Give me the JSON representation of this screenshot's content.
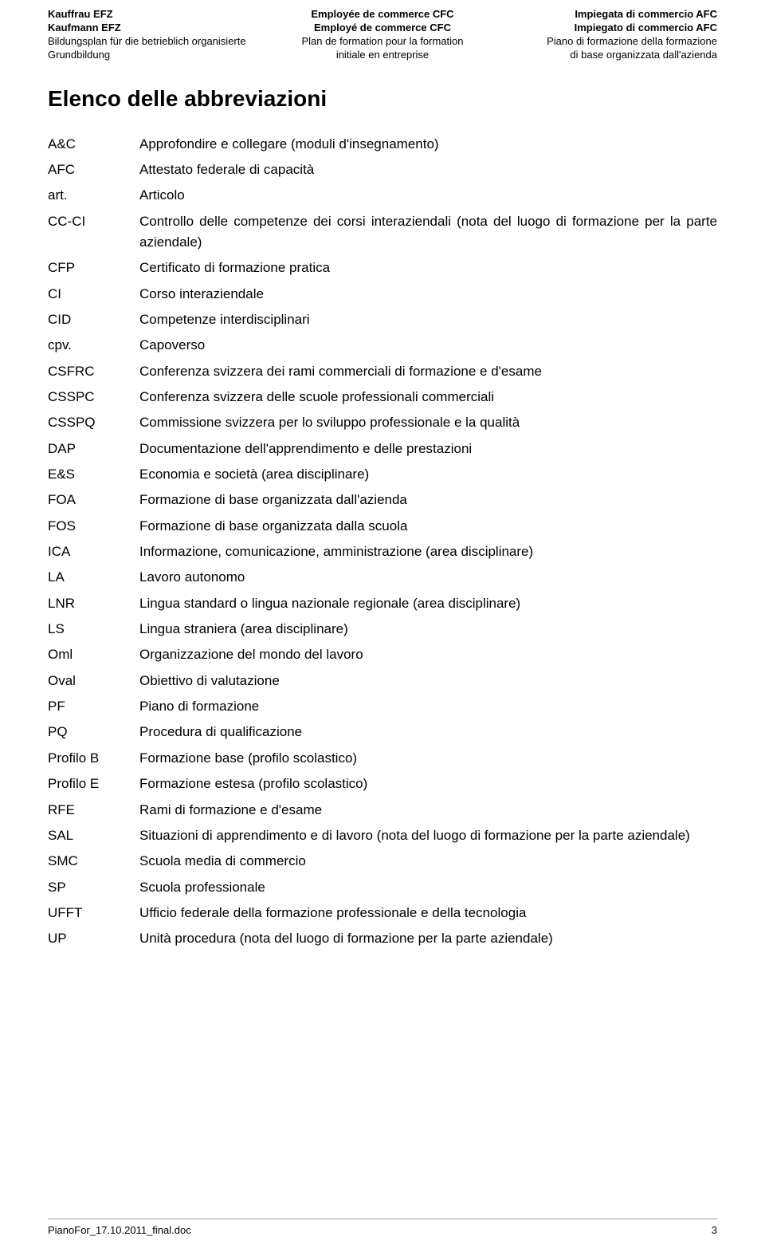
{
  "header": {
    "left": {
      "l1": "Kauffrau EFZ",
      "l2": "Kaufmann EFZ",
      "l3": "Bildungsplan für die betrieblich organisierte",
      "l4": "Grundbildung"
    },
    "center": {
      "l1": "Employée de commerce CFC",
      "l2": "Employé de commerce CFC",
      "l3": "Plan de formation pour la formation",
      "l4": "initiale en entreprise"
    },
    "right": {
      "l1": "Impiegata di commercio AFC",
      "l2": "Impiegato di commercio AFC",
      "l3": "Piano di formazione della formazione",
      "l4": "di base organizzata dall'azienda"
    }
  },
  "title": "Elenco delle abbreviazioni",
  "abbr": [
    {
      "term": "A&C",
      "def": "Approfondire e collegare (moduli d'insegnamento)"
    },
    {
      "term": "AFC",
      "def": "Attestato federale di capacità"
    },
    {
      "term": "art.",
      "def": "Articolo"
    },
    {
      "term": "CC-CI",
      "def": "Controllo delle competenze dei corsi interaziendali (nota del luogo di formazione per la parte aziendale)"
    },
    {
      "term": "CFP",
      "def": "Certificato di formazione pratica"
    },
    {
      "term": "CI",
      "def": "Corso interaziendale"
    },
    {
      "term": "CID",
      "def": "Competenze interdisciplinari"
    },
    {
      "term": "cpv.",
      "def": "Capoverso"
    },
    {
      "term": "CSFRC",
      "def": "Conferenza svizzera dei rami commerciali di formazione e d'esame"
    },
    {
      "term": "CSSPC",
      "def": "Conferenza svizzera delle scuole professionali commerciali"
    },
    {
      "term": "CSSPQ",
      "def": "Commissione svizzera per lo sviluppo professionale e la qualità"
    },
    {
      "term": "DAP",
      "def": "Documentazione dell'apprendimento e delle prestazioni"
    },
    {
      "term": "E&S",
      "def": "Economia e società (area disciplinare)"
    },
    {
      "term": "FOA",
      "def": "Formazione di base organizzata dall'azienda"
    },
    {
      "term": "FOS",
      "def": "Formazione di base organizzata dalla scuola"
    },
    {
      "term": "ICA",
      "def": "Informazione, comunicazione, amministrazione (area disciplinare)"
    },
    {
      "term": "LA",
      "def": "Lavoro autonomo"
    },
    {
      "term": "LNR",
      "def": "Lingua standard o lingua nazionale regionale (area disciplinare)"
    },
    {
      "term": "LS",
      "def": "Lingua straniera (area disciplinare)"
    },
    {
      "term": "Oml",
      "def": "Organizzazione del mondo del lavoro"
    },
    {
      "term": "Oval",
      "def": "Obiettivo di valutazione"
    },
    {
      "term": "PF",
      "def": "Piano di formazione"
    },
    {
      "term": "PQ",
      "def": "Procedura di qualificazione"
    },
    {
      "term": "Profilo B",
      "def": "Formazione base (profilo scolastico)"
    },
    {
      "term": "Profilo E",
      "def": "Formazione estesa (profilo scolastico)"
    },
    {
      "term": "RFE",
      "def": "Rami di formazione e d'esame"
    },
    {
      "term": "SAL",
      "def": "Situazioni di apprendimento e di lavoro (nota del luogo di formazione per la parte aziendale)"
    },
    {
      "term": "SMC",
      "def": "Scuola media di commercio"
    },
    {
      "term": "SP",
      "def": "Scuola professionale"
    },
    {
      "term": "UFFT",
      "def": "Ufficio federale della formazione professionale e della tecnologia"
    },
    {
      "term": "UP",
      "def": "Unità procedura (nota del luogo di formazione per la parte aziendale)"
    }
  ],
  "footer": {
    "filename": "PianoFor_17.10.2011_final.doc",
    "page": "3"
  }
}
